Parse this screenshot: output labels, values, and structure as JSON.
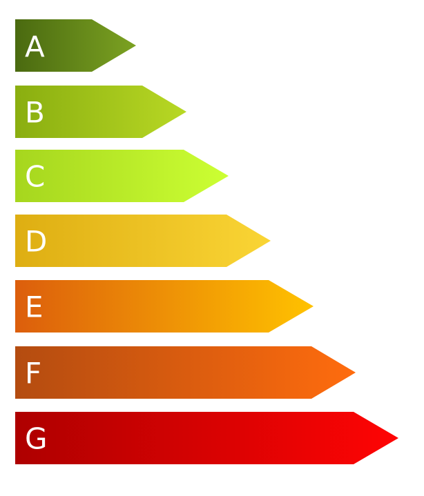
{
  "ratings": [
    {
      "label": "A"
    },
    {
      "label": "B"
    },
    {
      "label": "C"
    },
    {
      "label": "D"
    },
    {
      "label": "E"
    },
    {
      "label": "F"
    },
    {
      "label": "G"
    }
  ]
}
